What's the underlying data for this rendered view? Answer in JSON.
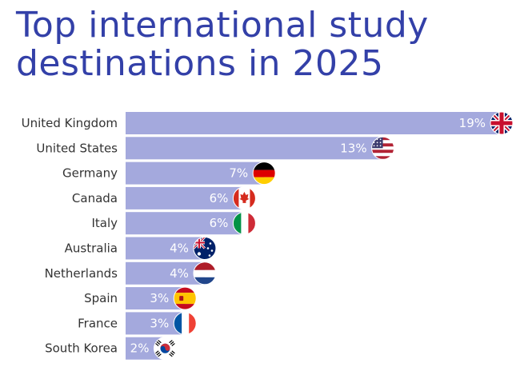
{
  "title": "Top international study destinations in 2025",
  "colors": {
    "title": "#3340a8",
    "bar": "#a4a9dd",
    "value_label": "#ffffff",
    "category_label": "#333333"
  },
  "chart_data": {
    "type": "bar",
    "orientation": "horizontal",
    "title": "Top international study destinations in 2025",
    "unit": "%",
    "categories": [
      "United Kingdom",
      "United States",
      "Germany",
      "Canada",
      "Italy",
      "Australia",
      "Netherlands",
      "Spain",
      "France",
      "South Korea"
    ],
    "values": [
      19,
      13,
      7,
      6,
      6,
      4,
      4,
      3,
      3,
      2
    ],
    "value_labels": [
      "19%",
      "13%",
      "7%",
      "6%",
      "6%",
      "4%",
      "4%",
      "3%",
      "3%",
      "2%"
    ],
    "flag_icons": [
      "uk-flag-icon",
      "us-flag-icon",
      "germany-flag-icon",
      "canada-flag-icon",
      "italy-flag-icon",
      "australia-flag-icon",
      "netherlands-flag-icon",
      "spain-flag-icon",
      "france-flag-icon",
      "south-korea-flag-icon"
    ],
    "xlim": [
      0,
      19
    ],
    "grid": false,
    "legend": "none"
  }
}
